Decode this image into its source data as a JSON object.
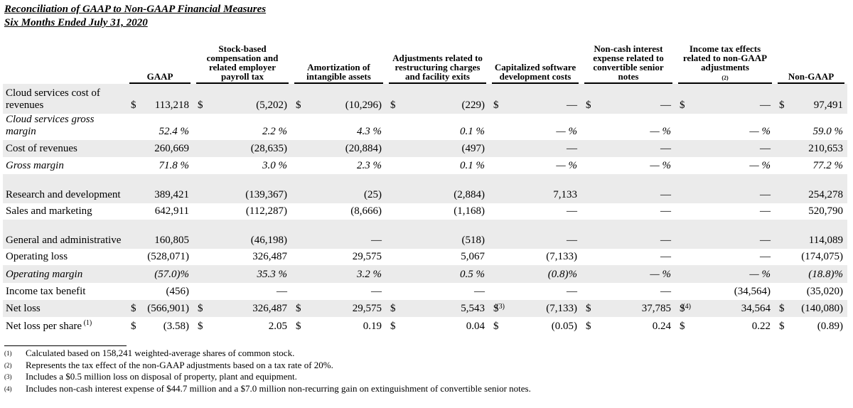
{
  "title": "Reconciliation of GAAP to Non-GAAP Financial Measures",
  "subtitle": "Six Months Ended July 31, 2020",
  "headers": [
    "GAAP",
    "Stock-based compensation and related employer payroll tax",
    "Amortization of intangible assets",
    "Adjustments related to restructuring charges and facility exits",
    "Capitalized software development costs",
    "Non-cash interest expense related to convertible senior notes",
    "Income tax effects related to non-GAAP adjustments",
    "Non-GAAP"
  ],
  "header_footnote": "(2)",
  "rows": [
    {
      "label": "Cloud services cost of revenues",
      "italic": false,
      "cells": [
        [
          "$",
          "113,218"
        ],
        [
          "$",
          "(5,202)"
        ],
        [
          "$",
          "(10,296)"
        ],
        [
          "$",
          "(229)"
        ],
        [
          "$",
          "—"
        ],
        [
          "$",
          "—"
        ],
        [
          "$",
          "—"
        ],
        [
          "$",
          "97,491"
        ]
      ]
    },
    {
      "label": "Cloud services gross margin",
      "italic": true,
      "cells": [
        [
          "",
          "52.4 %"
        ],
        [
          "",
          "2.2 %"
        ],
        [
          "",
          "4.3 %"
        ],
        [
          "",
          "0.1 %"
        ],
        [
          "",
          "— %"
        ],
        [
          "",
          "— %"
        ],
        [
          "",
          "— %"
        ],
        [
          "",
          "59.0 %"
        ]
      ]
    },
    {
      "label": "Cost of revenues",
      "italic": false,
      "cells": [
        [
          "",
          "260,669"
        ],
        [
          "",
          "(28,635)"
        ],
        [
          "",
          "(20,884)"
        ],
        [
          "",
          "(497)"
        ],
        [
          "",
          "—"
        ],
        [
          "",
          "—"
        ],
        [
          "",
          "—"
        ],
        [
          "",
          "210,653"
        ]
      ]
    },
    {
      "label": "Gross margin",
      "italic": true,
      "cells": [
        [
          "",
          "71.8 %"
        ],
        [
          "",
          "3.0 %"
        ],
        [
          "",
          "2.3 %"
        ],
        [
          "",
          "0.1 %"
        ],
        [
          "",
          "— %"
        ],
        [
          "",
          "— %"
        ],
        [
          "",
          "— %"
        ],
        [
          "",
          "77.2 %"
        ]
      ]
    },
    {
      "label": "Research and development",
      "italic": false,
      "cells": [
        [
          "",
          "389,421"
        ],
        [
          "",
          "(139,367)"
        ],
        [
          "",
          "(25)"
        ],
        [
          "",
          "(2,884)"
        ],
        [
          "",
          "7,133"
        ],
        [
          "",
          "—"
        ],
        [
          "",
          "—"
        ],
        [
          "",
          "254,278"
        ]
      ]
    },
    {
      "label": "Sales and marketing",
      "italic": false,
      "cells": [
        [
          "",
          "642,911"
        ],
        [
          "",
          "(112,287)"
        ],
        [
          "",
          "(8,666)"
        ],
        [
          "",
          "(1,168)"
        ],
        [
          "",
          "—"
        ],
        [
          "",
          "—"
        ],
        [
          "",
          "—"
        ],
        [
          "",
          "520,790"
        ]
      ]
    },
    {
      "label": "General and administrative",
      "italic": false,
      "cells": [
        [
          "",
          "160,805"
        ],
        [
          "",
          "(46,198)"
        ],
        [
          "",
          "—"
        ],
        [
          "",
          "(518)"
        ],
        [
          "",
          "—"
        ],
        [
          "",
          "—"
        ],
        [
          "",
          "—"
        ],
        [
          "",
          "114,089"
        ]
      ]
    },
    {
      "label": "Operating loss",
      "italic": false,
      "cells": [
        [
          "",
          "(528,071)"
        ],
        [
          "",
          "326,487"
        ],
        [
          "",
          "29,575"
        ],
        [
          "",
          "5,067"
        ],
        [
          "",
          "(7,133)"
        ],
        [
          "",
          "—"
        ],
        [
          "",
          "—"
        ],
        [
          "",
          "(174,075)"
        ]
      ]
    },
    {
      "label": "Operating margin",
      "italic": true,
      "cells": [
        [
          "",
          "(57.0)%"
        ],
        [
          "",
          "35.3 %"
        ],
        [
          "",
          "3.2 %"
        ],
        [
          "",
          "0.5 %"
        ],
        [
          "",
          "(0.8)%"
        ],
        [
          "",
          "— %"
        ],
        [
          "",
          "— %"
        ],
        [
          "",
          "(18.8)%"
        ]
      ]
    },
    {
      "label": "Income tax benefit",
      "italic": false,
      "cells": [
        [
          "",
          "(456)"
        ],
        [
          "",
          "—"
        ],
        [
          "",
          "—"
        ],
        [
          "",
          "—"
        ],
        [
          "",
          "—"
        ],
        [
          "",
          "—"
        ],
        [
          "",
          "(34,564)"
        ],
        [
          "",
          "(35,020)"
        ]
      ]
    },
    {
      "label": "Net loss",
      "italic": false,
      "cells": [
        [
          "$",
          "(566,901)"
        ],
        [
          "$",
          "326,487"
        ],
        [
          "$",
          "29,575"
        ],
        [
          "$",
          "5,543",
          "(3)"
        ],
        [
          "$",
          "(7,133)"
        ],
        [
          "$",
          "37,785",
          "(4)"
        ],
        [
          "$",
          "34,564"
        ],
        [
          "$",
          "(140,080)"
        ]
      ]
    },
    {
      "label": "Net loss per share",
      "label_footnote": "(1)",
      "italic": false,
      "cells": [
        [
          "$",
          "(3.58)"
        ],
        [
          "$",
          "2.05"
        ],
        [
          "$",
          "0.19"
        ],
        [
          "$",
          "0.04"
        ],
        [
          "$",
          "(0.05)"
        ],
        [
          "$",
          "0.24"
        ],
        [
          "$",
          "0.22"
        ],
        [
          "$",
          "(0.89)"
        ]
      ]
    }
  ],
  "footnotes": [
    {
      "mark": "(1)",
      "text": "Calculated based on 158,241 weighted-average shares of common stock."
    },
    {
      "mark": "(2)",
      "text": "Represents the tax effect of the non-GAAP adjustments based on a tax rate of 20%."
    },
    {
      "mark": "(3)",
      "text": "Includes a $0.5 million loss on disposal of property, plant and equipment."
    },
    {
      "mark": "(4)",
      "text": "Includes non-cash interest expense of $44.7 million and a $7.0 million non-recurring gain on extinguishment of convertible senior notes."
    }
  ]
}
